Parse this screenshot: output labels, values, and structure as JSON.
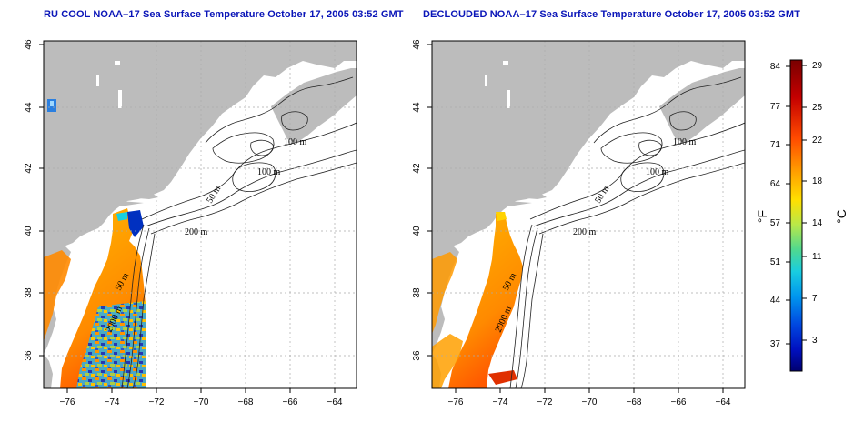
{
  "panels": [
    {
      "title": "RU COOL NOAA–17 Sea Surface Temperature October 17, 2005 03:52 GMT",
      "variant": "raw"
    },
    {
      "title": "DECLOUDED NOAA–17 Sea Surface Temperature October 17, 2005 03:52 GMT",
      "variant": "declouded"
    }
  ],
  "axes": {
    "lon_ticks": [
      "−76",
      "−74",
      "−72",
      "−70",
      "−68",
      "−66",
      "−64"
    ],
    "lon_values": [
      -76,
      -74,
      -72,
      -70,
      -68,
      -66,
      -64
    ],
    "lon_range": [
      -77.2,
      -63.2
    ],
    "lat_ticks": [
      "36",
      "38",
      "40",
      "42",
      "44",
      "46"
    ],
    "lat_values": [
      36,
      38,
      40,
      42,
      44,
      46
    ],
    "lat_range": [
      35,
      46
    ]
  },
  "contour_labels": [
    "100 m",
    "100 m",
    "50 m",
    "200 m",
    "50 m",
    "2000 m"
  ],
  "colorbar": {
    "fahrenheit_ticks": [
      "84",
      "77",
      "71",
      "64",
      "57",
      "51",
      "44",
      "37"
    ],
    "celsius_ticks": [
      "29",
      "25",
      "22",
      "18",
      "14",
      "11",
      "7",
      "3"
    ],
    "fahrenheit_unit": "°F",
    "celsius_unit": "°C",
    "colors": [
      "#7a0000",
      "#c40000",
      "#ff3c00",
      "#ff9a00",
      "#ffd400",
      "#cfe83a",
      "#6fd87a",
      "#1fd0c8",
      "#00a6ee",
      "#0060e6",
      "#0018c8",
      "#000078"
    ]
  },
  "colors": {
    "land": "#bcbcbc",
    "ocean": "#ffffff",
    "title": "#0a15b8"
  }
}
